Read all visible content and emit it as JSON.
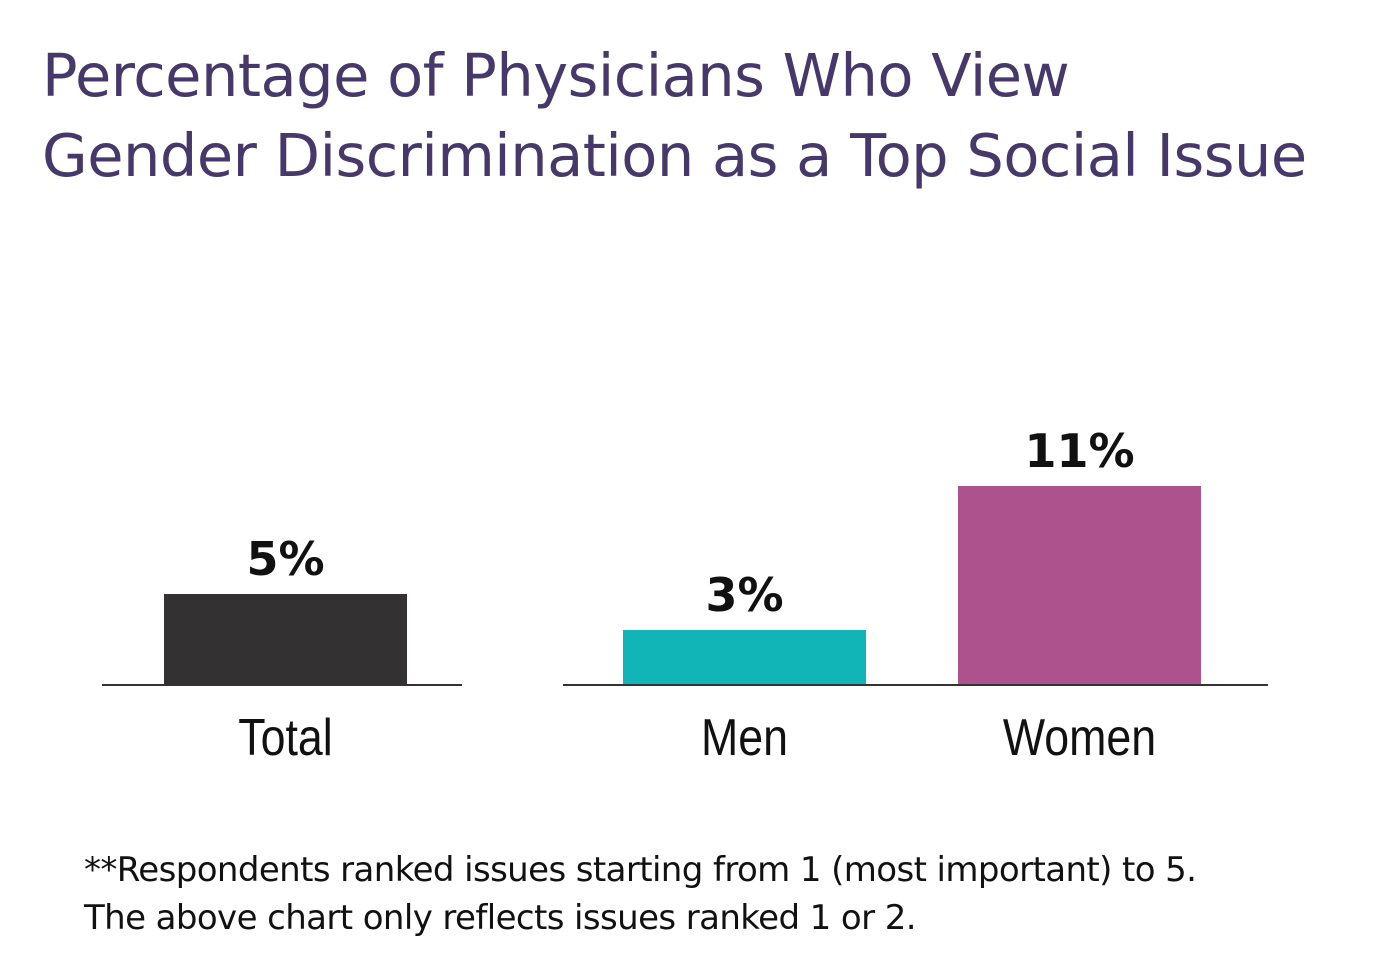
{
  "chart_data": {
    "type": "bar",
    "title": [
      "Percentage of Physicians Who View",
      "Gender Discrimination as a Top Social Issue"
    ],
    "categories": [
      "Total",
      "Men",
      "Women"
    ],
    "values": [
      5,
      3,
      11
    ],
    "value_labels": [
      "5%",
      "3%",
      "11%"
    ],
    "colors": [
      "#333132",
      "#12b5b7",
      "#ad528c"
    ],
    "xlabel": "",
    "ylabel": "",
    "grid": false,
    "footnote": [
      "**Respondents ranked issues starting from 1 (most important) to 5.",
      "The above chart only reflects issues ranked 1 or 2."
    ]
  }
}
